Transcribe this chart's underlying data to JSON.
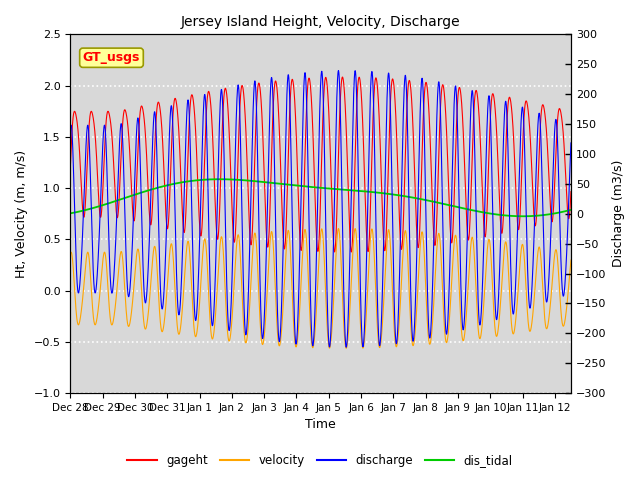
{
  "title": "Jersey Island Height, Velocity, Discharge",
  "xlabel": "Time",
  "ylabel_left": "Ht, Velocity (m, m/s)",
  "ylabel_right_str": "Discharge (m3/s)",
  "ylim_left": [
    -1.0,
    2.5
  ],
  "ylim_right": [
    -300,
    300
  ],
  "xlim_end_day": 15.5,
  "xtick_labels": [
    "Dec 28",
    "Dec 29",
    "Dec 30",
    "Dec 31",
    "Jan 1",
    "Jan 2",
    "Jan 3",
    "Jan 4",
    "Jan 5",
    "Jan 6",
    "Jan 7",
    "Jan 8",
    "Jan 9",
    "Jan 10",
    "Jan 11",
    "Jan 12"
  ],
  "xtick_positions": [
    0,
    1,
    2,
    3,
    4,
    5,
    6,
    7,
    8,
    9,
    10,
    11,
    12,
    13,
    14,
    15
  ],
  "legend_label": "GT_usgs",
  "legend_entries": [
    "gageht",
    "velocity",
    "discharge",
    "dis_tidal"
  ],
  "colors": {
    "gageht": "#FF0000",
    "velocity": "#FFA500",
    "discharge": "#0000FF",
    "dis_tidal": "#00CC00"
  },
  "background_color": "#FFFFFF",
  "plot_bg_color": "#D8D8D8",
  "grid_color": "#FFFFFF",
  "tidal_period_hours": 12.42
}
